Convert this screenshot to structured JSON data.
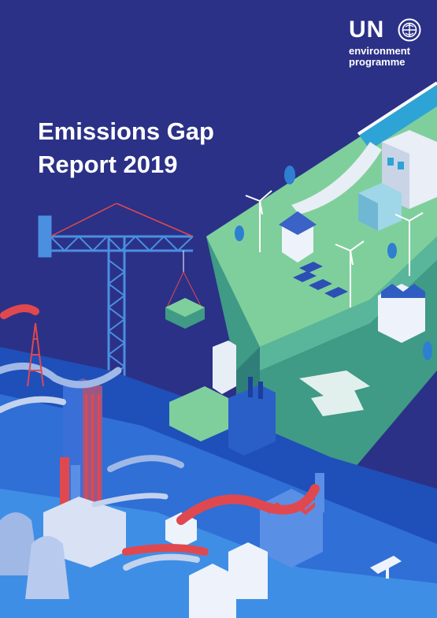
{
  "report": {
    "title_line1": "Emissions Gap",
    "title_line2": "Report 2019"
  },
  "logo": {
    "org": "UN",
    "line1": "environment",
    "line2": "programme",
    "emblem_icon": "unep-emblem-icon"
  },
  "colors": {
    "background": "#2b3187",
    "plateau_top": "#7fcf9c",
    "cliff": "#3f9a86",
    "industry_blue": "#2f6fd6",
    "smoke_red": "#e0484f"
  }
}
